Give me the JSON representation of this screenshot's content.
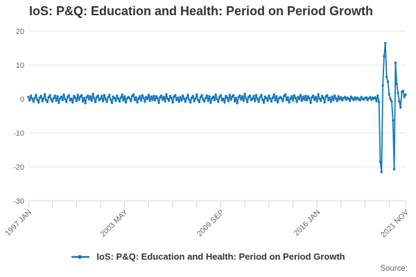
{
  "page": {
    "title": "IoS: P&Q: Education and Health: Period on Period Growth",
    "source_label": "Source:"
  },
  "legend": {
    "label": "IoS: P&Q: Education and Health: Period on Period Growth"
  },
  "colors": {
    "line": "#1277bd",
    "grid": "#e6e6e6",
    "axis": "#ccd6eb",
    "tick_text": "#666666",
    "title_text": "#333333"
  },
  "chart_data": {
    "type": "line",
    "title": "IoS: P&Q: Education and Health: Period on Period Growth",
    "xlabel": "",
    "ylabel": "",
    "ylim": [
      -30,
      20
    ],
    "y_ticks": [
      20,
      10,
      0,
      -10,
      -20,
      -30
    ],
    "grid": "horizontal",
    "legend_position": "bottom",
    "frequency": "monthly",
    "x_start": "1997 JAN",
    "x_end": "2021 NOV",
    "x_ticks": [
      {
        "index": 0,
        "label": "1997 JAN"
      },
      {
        "index": 76,
        "label": "2003 MAY"
      },
      {
        "index": 152,
        "label": "2009 SEP"
      },
      {
        "index": 228,
        "label": "2016 JAN"
      },
      {
        "index": 298,
        "label": "2021 NOV"
      }
    ],
    "minor_tick_step": 19,
    "series": [
      {
        "name": "IoS: P&Q: Education and Health: Period on Period Growth",
        "values": [
          0.6,
          -0.4,
          1.0,
          0.1,
          -0.8,
          0.3,
          1.2,
          -0.2,
          -1.0,
          0.4,
          0.9,
          -0.6,
          0.2,
          1.4,
          -0.3,
          -0.9,
          0.5,
          1.1,
          -0.1,
          -0.7,
          0.3,
          1.0,
          -0.5,
          0.8,
          -1.1,
          0.2,
          0.7,
          -0.3,
          1.3,
          0.0,
          -0.8,
          0.6,
          1.1,
          -0.4,
          0.1,
          -1.0,
          0.9,
          0.4,
          -0.6,
          1.2,
          -0.2,
          0.7,
          1.1,
          -0.7,
          0.3,
          -1.2,
          0.5,
          1.0,
          -0.1,
          0.8,
          -0.5,
          1.5,
          0.2,
          -0.9,
          0.6,
          1.0,
          -0.3,
          0.1,
          0.9,
          -0.6,
          1.1,
          0.0,
          -0.8,
          0.5,
          1.2,
          -0.2,
          -1.1,
          0.7,
          0.3,
          -0.5,
          1.0,
          0.1,
          -0.7,
          0.4,
          1.3,
          -0.4,
          0.8,
          -1.0,
          0.2,
          0.6,
          0.2,
          -0.6,
          0.9,
          1.3,
          -0.3,
          0.5,
          -1.0,
          0.1,
          0.8,
          -0.4,
          1.1,
          0.3,
          -0.8,
          0.6,
          0.0,
          1.2,
          -0.5,
          0.7,
          -0.2,
          0.9,
          -0.4,
          0.8,
          0.2,
          -1.1,
          0.5,
          1.0,
          -0.2,
          0.6,
          -0.7,
          1.4,
          0.1,
          -0.5,
          0.9,
          0.3,
          -1.0,
          0.7,
          1.1,
          -0.3,
          0.4,
          -0.8,
          0.6,
          -0.4,
          1.0,
          0.1,
          -0.8,
          0.3,
          1.2,
          -0.2,
          -1.0,
          0.4,
          0.9,
          -0.6,
          0.2,
          1.4,
          -0.3,
          -0.9,
          0.5,
          1.1,
          -0.1,
          -0.7,
          0.3,
          1.0,
          -0.5,
          0.8,
          -1.1,
          0.2,
          0.7,
          -0.3,
          1.3,
          0.0,
          -0.8,
          0.6,
          1.1,
          -0.4,
          0.1,
          -1.0,
          0.9,
          0.4,
          -0.6,
          1.2,
          -0.2,
          0.7,
          1.1,
          -0.7,
          0.3,
          -1.2,
          0.5,
          1.0,
          -0.1,
          0.8,
          -0.5,
          1.5,
          0.2,
          -0.9,
          0.6,
          1.0,
          -0.3,
          0.1,
          0.9,
          -0.6,
          1.1,
          0.0,
          -0.8,
          0.5,
          1.2,
          -0.2,
          -1.1,
          0.7,
          0.3,
          -0.5,
          1.0,
          0.1,
          -0.7,
          0.4,
          1.3,
          -0.4,
          0.8,
          -1.0,
          0.2,
          0.6,
          0.2,
          -0.6,
          0.9,
          1.3,
          -0.3,
          0.5,
          -1.0,
          0.1,
          0.8,
          -0.4,
          1.1,
          0.3,
          -0.8,
          0.6,
          0.0,
          1.2,
          -0.5,
          0.7,
          -0.2,
          0.9,
          -0.4,
          0.8,
          0.2,
          -1.1,
          0.5,
          1.0,
          -0.2,
          0.6,
          -0.7,
          1.4,
          0.1,
          -0.5,
          0.9,
          0.3,
          -1.0,
          0.7,
          1.1,
          -0.3,
          0.4,
          -0.8,
          0.7,
          -0.3,
          1.0,
          0.2,
          -0.6,
          0.8,
          -0.1,
          0.5,
          -0.4,
          0.3,
          0.6,
          -0.2,
          0.4,
          0.1,
          -0.5,
          0.7,
          0.2,
          -0.3,
          0.5,
          -0.1,
          0.4,
          0.0,
          -0.4,
          0.6,
          0.1,
          -0.2,
          0.3,
          0.5,
          -0.3,
          0.2,
          0.6,
          -0.2,
          0.4,
          0.1,
          0.5,
          -0.6,
          1.0,
          -0.9,
          -18.5,
          -21.5,
          4.0,
          12.6,
          16.5,
          6.5,
          5.1,
          1.4,
          0.0,
          -0.7,
          -6.3,
          -20.7,
          10.7,
          4.4,
          1.8,
          -0.7,
          -2.5,
          2.1,
          2.4,
          0.6,
          1.3
        ]
      }
    ]
  }
}
